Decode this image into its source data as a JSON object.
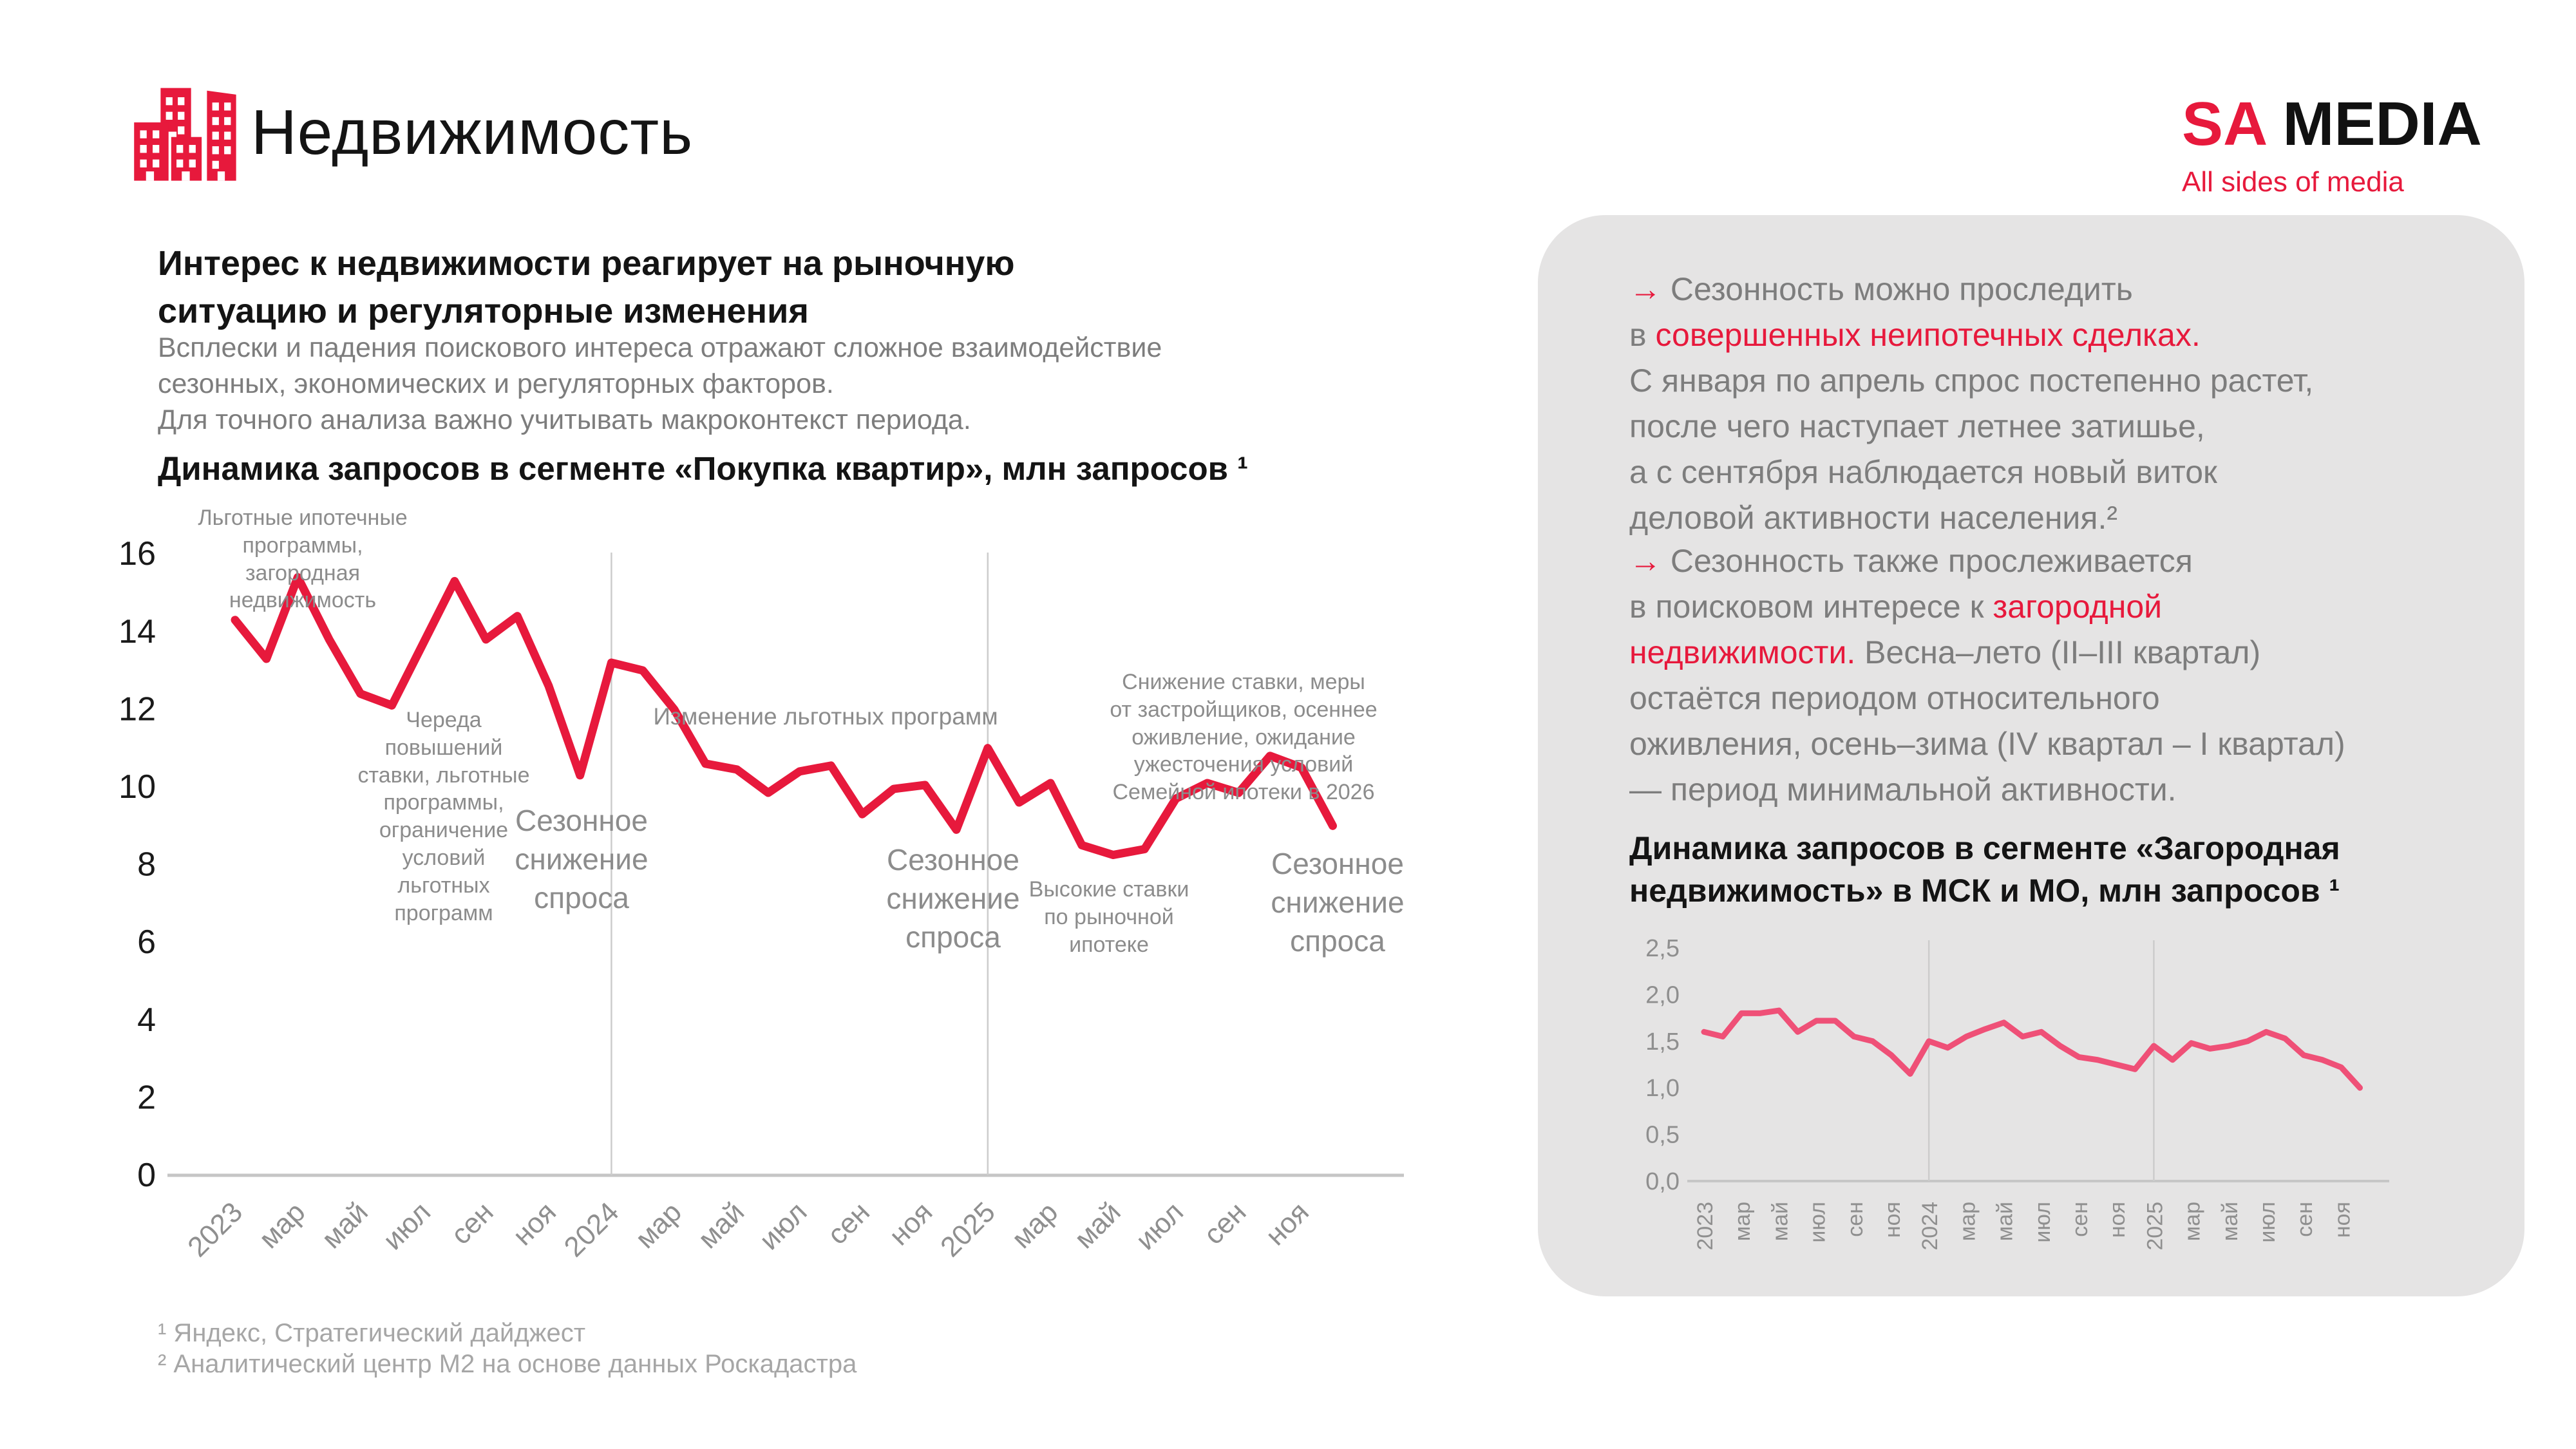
{
  "colors": {
    "accent_red": "#E7193C",
    "small_line_pink": "#EF5077",
    "panel_bg": "#E5E4E4",
    "text_dark": "#141414",
    "text_gray": "#7D7D7D",
    "annotation_gray": "#8C8C8C",
    "footnote_gray": "#A6A6A6"
  },
  "header": {
    "title": "Недвижимость",
    "brand_sa": "SA",
    "brand_media": "MEDIA",
    "brand_tagline": "All sides of media"
  },
  "intro": {
    "heading": "Интерес к недвижимости реагирует на рыночную\nситуацию и регуляторные изменения",
    "body": "Всплески и падения поискового интереса отражают сложное взаимодействие\nсезонных, экономических и регуляторных факторов.\nДля точного анализа важно учитывать макроконтекст периода."
  },
  "big_chart_title": "Динамика запросов в сегменте «Покупка квартир», млн запросов ¹",
  "small_chart_title": "Динамика запросов в сегменте «Загородная\nнедвижимость» в МСК и МО, млн запросов ¹",
  "footnotes": [
    "¹ Яндекс, Стратегический дайджест",
    "² Аналитический центр М2 на основе данных Роскадастра"
  ],
  "right_panel": {
    "paragraphs": [
      {
        "segments": [
          {
            "text": "→ ",
            "color": "red"
          },
          {
            "text": "Сезонность можно проследить\nв ",
            "color": "gray"
          },
          {
            "text": "совершенных неипотечных сделках.",
            "color": "red"
          },
          {
            "text": "\nС января по апрель спрос постепенно растет,\nпосле чего наступает летнее затишье,\nа с сентября наблюдается новый виток\nделовой активности населения.²",
            "color": "gray"
          }
        ]
      },
      {
        "segments": [
          {
            "text": "→ ",
            "color": "red"
          },
          {
            "text": "Сезонность также прослеживается\nв поисковом интересе к ",
            "color": "gray"
          },
          {
            "text": "загородной\nнедвижимости.",
            "color": "red"
          },
          {
            "text": " Весна–лето (II–III квартал)\nостаётся периодом относительного\nоживления, осень–зима (IV квартал – I квартал)\n— период минимальной активности.",
            "color": "gray"
          }
        ]
      }
    ]
  },
  "chart_data": [
    {
      "type": "line",
      "title": "Динамика запросов в сегменте «Покупка квартир», млн запросов ¹",
      "ylabel": "млн запросов",
      "ylim": [
        0,
        16
      ],
      "yticks": [
        0,
        2,
        4,
        6,
        8,
        10,
        12,
        14,
        16
      ],
      "ytick_labels": [
        "0",
        "2",
        "4",
        "6",
        "8",
        "10",
        "12",
        "14",
        "16"
      ],
      "x_tick_labels": [
        "2023",
        "мар",
        "май",
        "июл",
        "сен",
        "ноя",
        "2024",
        "мар",
        "май",
        "июл",
        "сен",
        "ноя",
        "2025",
        "мар",
        "май",
        "июл",
        "сен",
        "ноя"
      ],
      "year_separator_indices": [
        12,
        24
      ],
      "line_color": "#E7193C",
      "values": [
        14.3,
        13.3,
        15.4,
        13.8,
        12.4,
        12.1,
        13.7,
        15.3,
        13.8,
        14.4,
        12.6,
        10.3,
        13.2,
        13.0,
        12.0,
        10.6,
        10.45,
        9.85,
        10.4,
        10.55,
        9.3,
        9.95,
        10.05,
        8.9,
        11.0,
        9.6,
        10.1,
        8.5,
        8.25,
        8.4,
        9.7,
        10.1,
        9.85,
        10.8,
        10.5,
        9.0
      ],
      "annotations": [
        {
          "text": "Льготные ипотечные\nпрограммы,\nзагородная\nнедвижимость",
          "x": 470,
          "y": 783,
          "size": "small"
        },
        {
          "text": "Череда\nповышений\nставки, льготные\nпрограммы,\nограничение\nусловий\nльготных\nпрограмм",
          "x": 689,
          "y": 1097,
          "size": "small"
        },
        {
          "text": "Сезонное\nснижение\nспроса",
          "x": 903,
          "y": 1245,
          "size": "big"
        },
        {
          "text": "Изменение льготных программ",
          "x": 1282,
          "y": 1090,
          "size": "medium"
        },
        {
          "text": "Сезонное\nснижение\nспроса",
          "x": 1480,
          "y": 1306,
          "size": "big"
        },
        {
          "text": "Высокие ставки\nпо рыночной\nипотеке",
          "x": 1722,
          "y": 1360,
          "size": "small"
        },
        {
          "text": "Снижение ставки, меры\nот застройщиков, осеннее\nоживление, ожидание\nужесточения условий\nСемейной ипотеки в 2026",
          "x": 1931,
          "y": 1038,
          "size": "small"
        },
        {
          "text": "Сезонное\nснижение\nспроса",
          "x": 2077,
          "y": 1312,
          "size": "big"
        }
      ]
    },
    {
      "type": "line",
      "title": "Динамика запросов в сегменте «Загородная недвижимость» в МСК и МО, млн запросов ¹",
      "ylabel": "млн запросов",
      "ylim": [
        0,
        2.5
      ],
      "yticks": [
        0,
        0.5,
        1.0,
        1.5,
        2.0,
        2.5
      ],
      "ytick_labels": [
        "0,0",
        "0,5",
        "1,0",
        "1,5",
        "2,0",
        "2,5"
      ],
      "x_tick_labels": [
        "2023",
        "мар",
        "май",
        "июл",
        "сен",
        "ноя",
        "2024",
        "мар",
        "май",
        "июл",
        "сен",
        "ноя",
        "2025",
        "мар",
        "май",
        "июл",
        "сен",
        "ноя"
      ],
      "year_separator_indices": [
        12,
        24
      ],
      "line_color": "#EF5077",
      "values": [
        1.6,
        1.55,
        1.8,
        1.8,
        1.83,
        1.6,
        1.72,
        1.72,
        1.55,
        1.5,
        1.35,
        1.15,
        1.5,
        1.43,
        1.55,
        1.63,
        1.7,
        1.55,
        1.6,
        1.45,
        1.33,
        1.3,
        1.25,
        1.2,
        1.45,
        1.3,
        1.48,
        1.42,
        1.45,
        1.5,
        1.6,
        1.53,
        1.35,
        1.3,
        1.22,
        1.0
      ]
    }
  ]
}
